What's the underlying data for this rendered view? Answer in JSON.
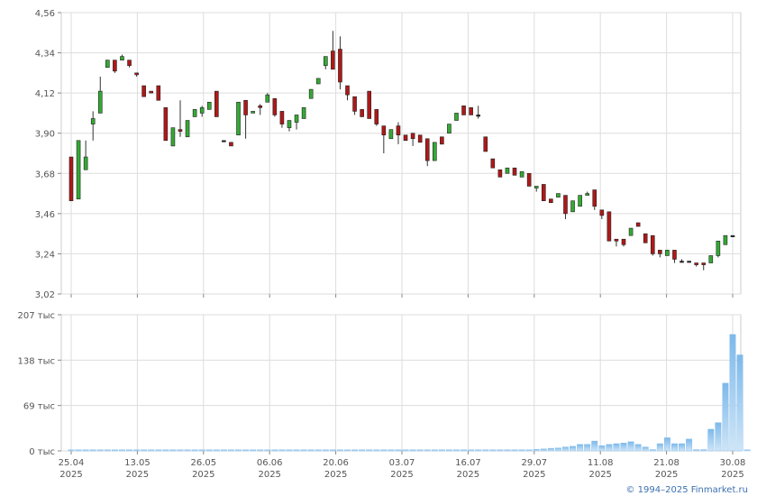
{
  "chart_data": [
    {
      "type": "candlestick",
      "title": "",
      "xlabel": "",
      "ylabel": "",
      "ylim": [
        3.02,
        4.56
      ],
      "y_ticks": [
        "3,02",
        "3,24",
        "3,46",
        "3,68",
        "3,90",
        "4,12",
        "4,34",
        "4,56"
      ],
      "x_ticks": [
        {
          "day": "25.04",
          "year": "2025"
        },
        {
          "day": "13.05",
          "year": "2025"
        },
        {
          "day": "26.05",
          "year": "2025"
        },
        {
          "day": "06.06",
          "year": "2025"
        },
        {
          "day": "20.06",
          "year": "2025"
        },
        {
          "day": "03.07",
          "year": "2025"
        },
        {
          "day": "16.07",
          "year": "2025"
        },
        {
          "day": "29.07",
          "year": "2025"
        },
        {
          "day": "11.08",
          "year": "2025"
        },
        {
          "day": "21.08",
          "year": "2025"
        },
        {
          "day": "30.08",
          "year": "2025"
        }
      ],
      "grid": true,
      "colors": {
        "up": "#33aa33",
        "down": "#b01818",
        "flat": "#222222"
      },
      "candles": [
        [
          3.77,
          3.53,
          3.77,
          3.53
        ],
        [
          3.54,
          3.86,
          3.86,
          3.54
        ],
        [
          3.7,
          3.77,
          3.86,
          3.7
        ],
        [
          3.95,
          3.98,
          4.02,
          3.86
        ],
        [
          4.01,
          4.13,
          4.21,
          4.01
        ],
        [
          4.26,
          4.3,
          4.3,
          4.26
        ],
        [
          4.3,
          4.24,
          4.3,
          4.23
        ],
        [
          4.3,
          4.32,
          4.33,
          4.3
        ],
        [
          4.3,
          4.27,
          4.3,
          4.26
        ],
        [
          4.23,
          4.22,
          4.23,
          4.21
        ],
        [
          4.16,
          4.1,
          4.16,
          4.1
        ],
        [
          4.13,
          4.12,
          4.13,
          4.12
        ],
        [
          4.16,
          4.08,
          4.16,
          4.08
        ],
        [
          4.04,
          3.86,
          4.04,
          3.86
        ],
        [
          3.83,
          3.93,
          3.93,
          3.83
        ],
        [
          3.92,
          3.91,
          4.08,
          3.88
        ],
        [
          3.88,
          3.97,
          3.97,
          3.88
        ],
        [
          3.99,
          4.03,
          4.03,
          3.99
        ],
        [
          4.01,
          4.04,
          4.05,
          3.99
        ],
        [
          4.03,
          4.07,
          4.07,
          4.03
        ],
        [
          4.13,
          3.99,
          4.13,
          3.99
        ],
        [
          3.86,
          3.86,
          3.86,
          3.86
        ],
        [
          3.85,
          3.83,
          3.85,
          3.83
        ],
        [
          3.89,
          4.07,
          4.07,
          3.89
        ],
        [
          4.08,
          4.0,
          4.08,
          3.87
        ],
        [
          4.01,
          4.02,
          4.02,
          4.01
        ],
        [
          4.05,
          4.04,
          4.06,
          4.0
        ],
        [
          4.07,
          4.11,
          4.12,
          4.07
        ],
        [
          4.09,
          4.0,
          4.09,
          3.99
        ],
        [
          4.02,
          3.95,
          4.02,
          3.93
        ],
        [
          3.93,
          3.97,
          3.97,
          3.91
        ],
        [
          3.96,
          4.0,
          4.0,
          3.92
        ],
        [
          3.98,
          4.04,
          4.04,
          3.98
        ],
        [
          4.09,
          4.14,
          4.14,
          4.09
        ],
        [
          4.17,
          4.2,
          4.2,
          4.17
        ],
        [
          4.27,
          4.32,
          4.32,
          4.25
        ],
        [
          4.35,
          4.25,
          4.46,
          4.25
        ],
        [
          4.36,
          4.18,
          4.43,
          4.14
        ],
        [
          4.16,
          4.11,
          4.16,
          4.08
        ],
        [
          4.1,
          4.02,
          4.1,
          4.0
        ],
        [
          4.03,
          3.99,
          4.03,
          3.99
        ],
        [
          4.13,
          3.98,
          4.13,
          3.98
        ],
        [
          4.03,
          3.95,
          4.03,
          3.94
        ],
        [
          3.94,
          3.89,
          3.94,
          3.79
        ],
        [
          3.87,
          3.92,
          3.92,
          3.87
        ],
        [
          3.94,
          3.89,
          3.96,
          3.84
        ],
        [
          3.89,
          3.86,
          3.89,
          3.86
        ],
        [
          3.9,
          3.87,
          3.9,
          3.83
        ],
        [
          3.89,
          3.85,
          3.89,
          3.85
        ],
        [
          3.87,
          3.75,
          3.87,
          3.72
        ],
        [
          3.75,
          3.85,
          3.85,
          3.75
        ],
        [
          3.88,
          3.84,
          3.88,
          3.84
        ],
        [
          3.9,
          3.95,
          3.95,
          3.9
        ],
        [
          3.97,
          4.01,
          4.01,
          3.97
        ],
        [
          4.05,
          4.0,
          4.05,
          4.0
        ],
        [
          4.04,
          4.0,
          4.04,
          4.0
        ],
        [
          4.0,
          4.0,
          4.05,
          3.98
        ],
        [
          3.88,
          3.8,
          3.88,
          3.8
        ],
        [
          3.76,
          3.71,
          3.76,
          3.71
        ],
        [
          3.7,
          3.66,
          3.7,
          3.66
        ],
        [
          3.68,
          3.71,
          3.71,
          3.68
        ],
        [
          3.71,
          3.67,
          3.71,
          3.67
        ],
        [
          3.66,
          3.69,
          3.69,
          3.66
        ],
        [
          3.68,
          3.61,
          3.68,
          3.61
        ],
        [
          3.6,
          3.61,
          3.61,
          3.58
        ],
        [
          3.62,
          3.53,
          3.62,
          3.53
        ],
        [
          3.54,
          3.52,
          3.54,
          3.52
        ],
        [
          3.55,
          3.57,
          3.57,
          3.55
        ],
        [
          3.56,
          3.46,
          3.56,
          3.43
        ],
        [
          3.47,
          3.53,
          3.53,
          3.47
        ],
        [
          3.5,
          3.56,
          3.56,
          3.5
        ],
        [
          3.56,
          3.57,
          3.58,
          3.56
        ],
        [
          3.59,
          3.5,
          3.59,
          3.48
        ],
        [
          3.48,
          3.45,
          3.48,
          3.43
        ],
        [
          3.47,
          3.31,
          3.47,
          3.31
        ],
        [
          3.32,
          3.31,
          3.32,
          3.28
        ],
        [
          3.32,
          3.29,
          3.32,
          3.28
        ],
        [
          3.34,
          3.38,
          3.38,
          3.34
        ],
        [
          3.41,
          3.39,
          3.41,
          3.39
        ],
        [
          3.35,
          3.3,
          3.35,
          3.3
        ],
        [
          3.34,
          3.24,
          3.34,
          3.23
        ],
        [
          3.26,
          3.24,
          3.26,
          3.22
        ],
        [
          3.23,
          3.26,
          3.26,
          3.23
        ],
        [
          3.26,
          3.21,
          3.26,
          3.19
        ],
        [
          3.2,
          3.2,
          3.21,
          3.2
        ],
        [
          3.2,
          3.2,
          3.2,
          3.2
        ],
        [
          3.19,
          3.18,
          3.19,
          3.17
        ],
        [
          3.19,
          3.18,
          3.19,
          3.15
        ],
        [
          3.19,
          3.23,
          3.23,
          3.19
        ],
        [
          3.23,
          3.31,
          3.31,
          3.22
        ],
        [
          3.29,
          3.34,
          3.34,
          3.29
        ],
        [
          3.34,
          3.34,
          3.34,
          3.34
        ]
      ]
    },
    {
      "type": "bar",
      "title": "",
      "xlabel": "",
      "ylabel": "",
      "ylim": [
        0,
        207000
      ],
      "y_ticks": [
        "0 тыс",
        "69 тыс",
        "138 тыс",
        "207 тыс"
      ],
      "colors": {
        "bar": "#7db9ea",
        "bar_light": "#cfe5f7"
      },
      "values": [
        1000,
        1000,
        1000,
        1000,
        1000,
        1000,
        1000,
        1000,
        1000,
        1000,
        1000,
        1000,
        1000,
        1000,
        1000,
        1000,
        1000,
        1000,
        1000,
        1000,
        1000,
        1000,
        1000,
        1000,
        1000,
        1000,
        1000,
        1000,
        1000,
        1000,
        1000,
        1000,
        1000,
        1000,
        1000,
        1000,
        1000,
        1000,
        1000,
        1000,
        1000,
        1000,
        1000,
        1000,
        1000,
        1000,
        1000,
        1000,
        1000,
        1000,
        1000,
        1000,
        1000,
        1000,
        1000,
        1000,
        1000,
        1000,
        1000,
        1000,
        1000,
        1000,
        1000,
        1000,
        2500,
        3000,
        4000,
        4500,
        6000,
        7000,
        10000,
        10000,
        15000,
        8000,
        10000,
        11000,
        12000,
        14000,
        10000,
        6000,
        2000,
        11000,
        20000,
        11000,
        11000,
        18000,
        2000,
        2000,
        33000,
        43000,
        103000,
        177000,
        146000,
        0
      ]
    }
  ],
  "copyright": "© 1994–2025 Finmarket.ru"
}
